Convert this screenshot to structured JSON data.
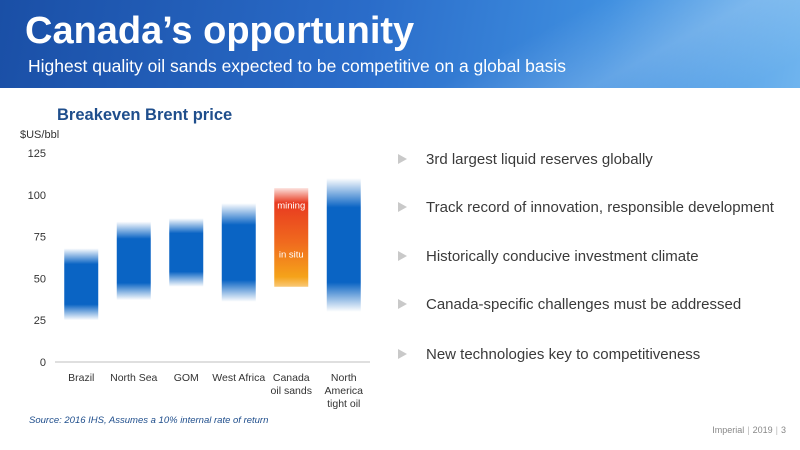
{
  "header": {
    "title": "Canada’s opportunity",
    "subtitle": "Highest quality oil sands expected to be competitive on a global basis"
  },
  "chart_data": {
    "type": "bar",
    "title": "Breakeven Brent price",
    "ylabel": "$US/bbl",
    "ylim": [
      0,
      125
    ],
    "yticks": [
      0,
      25,
      50,
      75,
      100,
      125
    ],
    "grid": false,
    "categories": [
      {
        "lines": [
          "Brazil"
        ],
        "low": 25,
        "high": 68
      },
      {
        "lines": [
          "North Sea"
        ],
        "low": 37,
        "high": 84
      },
      {
        "lines": [
          "GOM"
        ],
        "low": 45,
        "high": 86
      },
      {
        "lines": [
          "West Africa"
        ],
        "low": 36,
        "high": 95
      },
      {
        "lines": [
          "Canada",
          "oil sands"
        ],
        "low": 45,
        "high": 104,
        "segments": [
          {
            "label": "mining",
            "low": 75,
            "high": 104
          },
          {
            "label": "in situ",
            "low": 45,
            "high": 75
          }
        ]
      },
      {
        "lines": [
          "North",
          "America",
          "tight oil"
        ],
        "low": 30,
        "high": 110
      }
    ],
    "colors": {
      "bar": "#0a64c4",
      "oil_sands": "#f06a1e",
      "oil_sands_top": "#e83a20",
      "oil_sands_bottom": "#f5a31a"
    }
  },
  "bullets": [
    "3rd largest liquid reserves globally",
    "Track record of innovation, responsible development",
    "Historically conducive investment climate",
    "Canada-specific challenges must be addressed",
    "New technologies key to competitiveness"
  ],
  "source": "Source: 2016 IHS, Assumes a 10% internal rate of return",
  "footer": {
    "company": "Imperial",
    "year": "2019",
    "page": "3"
  }
}
